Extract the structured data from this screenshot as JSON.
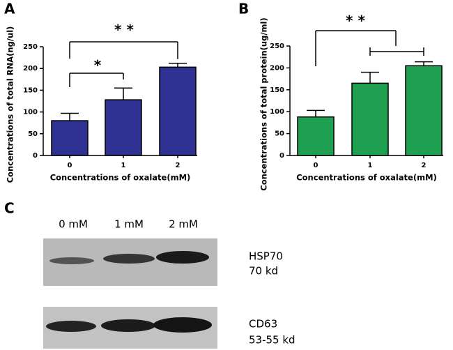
{
  "chart_data": [
    {
      "type": "bar",
      "panel": "A",
      "y_label": "Concentrations of total RNA(ng/ul)",
      "x_label": "Concentrations of oxalate(mM)",
      "categories": [
        "0",
        "1",
        "2"
      ],
      "values": [
        80,
        128,
        203
      ],
      "errors": [
        17,
        27,
        9
      ],
      "color": "#2e3192",
      "ylim": [
        0,
        250
      ],
      "yticks": [
        0,
        50,
        100,
        150,
        200,
        250
      ],
      "annotations": [
        "* *",
        "*"
      ]
    },
    {
      "type": "bar",
      "panel": "B",
      "y_label": "Concentrations of total protein(ug/ml)",
      "x_label": "Concentrations of oxalate(mM)",
      "categories": [
        "0",
        "1",
        "2"
      ],
      "values": [
        88,
        165,
        205
      ],
      "errors": [
        15,
        25,
        9
      ],
      "color": "#1fa050",
      "ylim": [
        0,
        250
      ],
      "yticks": [
        0,
        50,
        100,
        150,
        200,
        250
      ],
      "annotations": [
        "* *"
      ]
    }
  ],
  "blot": {
    "panel": "C",
    "lanes": [
      "0 mM",
      "1 mM",
      "2 mM"
    ],
    "rows": [
      {
        "protein": "HSP70",
        "size": "70 kd"
      },
      {
        "protein": "CD63",
        "size": "53-55 kd"
      }
    ]
  }
}
